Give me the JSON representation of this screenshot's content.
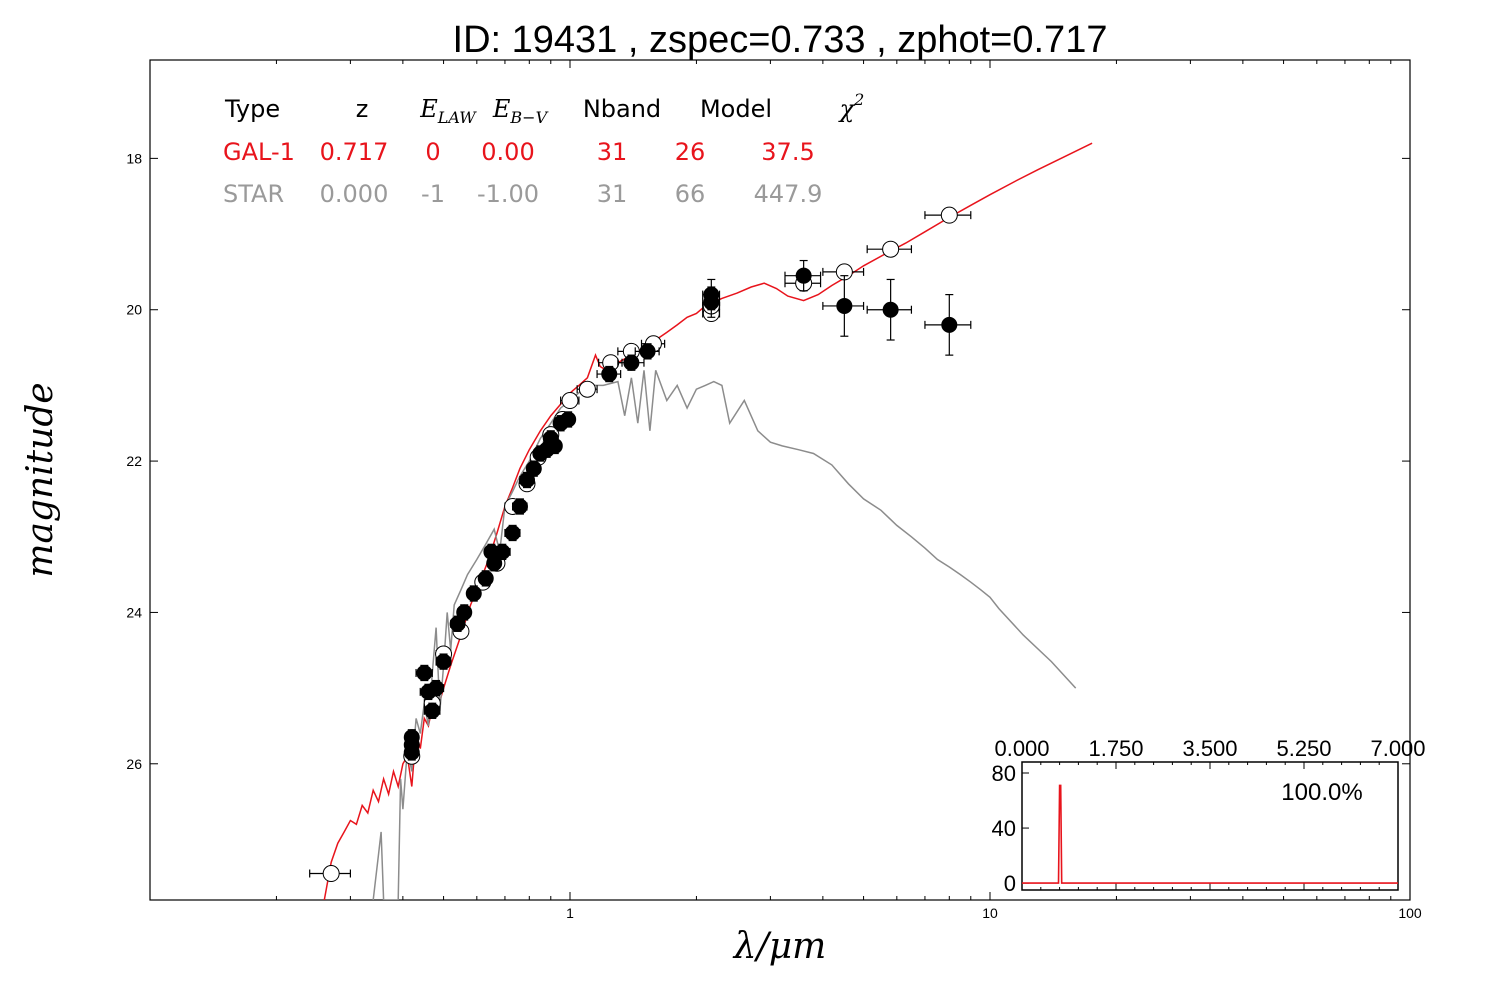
{
  "chart_data": {
    "type": "scatter",
    "title": "ID:  19431 , zspec=0.733 , zphot=0.717",
    "xlabel": "λ/μm",
    "ylabel": "magnitude",
    "xscale": "log",
    "xlim": [
      0.1,
      100
    ],
    "ylim": [
      27.8,
      16.7
    ],
    "yinverted": true,
    "x_ticks": [
      {
        "value": 1,
        "label": "1"
      },
      {
        "value": 10,
        "label": "10"
      },
      {
        "value": 100,
        "label": "100"
      }
    ],
    "y_ticks": [
      {
        "value": 18,
        "label": "18"
      },
      {
        "value": 20,
        "label": "20"
      },
      {
        "value": 22,
        "label": "22"
      },
      {
        "value": 24,
        "label": "24"
      },
      {
        "value": 26,
        "label": "26"
      }
    ],
    "fit_table": {
      "headers": [
        {
          "text": "Type",
          "math": false
        },
        {
          "text": "z",
          "math": false
        },
        {
          "text": "E",
          "sub": "LAW",
          "math": true
        },
        {
          "text": "E",
          "sub": "B−V",
          "math": true
        },
        {
          "text": "Nband",
          "math": false
        },
        {
          "text": "Model",
          "math": false
        },
        {
          "text": "χ",
          "sup": "2",
          "math": true
        }
      ],
      "rows": [
        {
          "color": "#e8141c",
          "cells": [
            "GAL-1",
            "0.717",
            "0",
            "0.00",
            "31",
            "26",
            "37.5"
          ]
        },
        {
          "color": "#9a9a9a",
          "cells": [
            "STAR",
            "0.000",
            "-1",
            "-1.00",
            "31",
            "66",
            "447.9"
          ]
        }
      ]
    },
    "series": [
      {
        "kind": "galaxy_template",
        "color": "#e8141c",
        "points": [
          [
            0.26,
            27.8
          ],
          [
            0.27,
            27.3
          ],
          [
            0.28,
            27.05
          ],
          [
            0.29,
            26.9
          ],
          [
            0.3,
            26.75
          ],
          [
            0.31,
            26.8
          ],
          [
            0.32,
            26.55
          ],
          [
            0.33,
            26.65
          ],
          [
            0.34,
            26.35
          ],
          [
            0.35,
            26.5
          ],
          [
            0.36,
            26.2
          ],
          [
            0.37,
            26.4
          ],
          [
            0.38,
            26.1
          ],
          [
            0.39,
            26.3
          ],
          [
            0.4,
            26.0
          ],
          [
            0.41,
            25.9
          ],
          [
            0.42,
            26.3
          ],
          [
            0.43,
            25.6
          ],
          [
            0.44,
            25.8
          ],
          [
            0.45,
            25.4
          ],
          [
            0.46,
            25.5
          ],
          [
            0.47,
            25.25
          ],
          [
            0.48,
            25.35
          ],
          [
            0.5,
            25.0
          ],
          [
            0.52,
            24.7
          ],
          [
            0.55,
            24.3
          ],
          [
            0.58,
            23.9
          ],
          [
            0.61,
            23.6
          ],
          [
            0.64,
            23.3
          ],
          [
            0.67,
            22.95
          ],
          [
            0.7,
            22.6
          ],
          [
            0.73,
            22.35
          ],
          [
            0.76,
            22.1
          ],
          [
            0.8,
            21.85
          ],
          [
            0.85,
            21.6
          ],
          [
            0.9,
            21.4
          ],
          [
            0.95,
            21.25
          ],
          [
            1.0,
            21.1
          ],
          [
            1.05,
            21.0
          ],
          [
            1.1,
            20.9
          ],
          [
            1.15,
            20.6
          ],
          [
            1.18,
            20.75
          ],
          [
            1.22,
            20.8
          ],
          [
            1.3,
            20.7
          ],
          [
            1.4,
            20.6
          ],
          [
            1.5,
            20.5
          ],
          [
            1.6,
            20.4
          ],
          [
            1.7,
            20.3
          ],
          [
            1.8,
            20.2
          ],
          [
            1.9,
            20.1
          ],
          [
            2.0,
            20.05
          ],
          [
            2.1,
            19.95
          ],
          [
            2.3,
            19.85
          ],
          [
            2.5,
            19.78
          ],
          [
            2.7,
            19.7
          ],
          [
            2.9,
            19.65
          ],
          [
            3.1,
            19.72
          ],
          [
            3.3,
            19.82
          ],
          [
            3.6,
            19.88
          ],
          [
            3.9,
            19.8
          ],
          [
            4.2,
            19.68
          ],
          [
            4.6,
            19.55
          ],
          [
            5.0,
            19.42
          ],
          [
            5.6,
            19.27
          ],
          [
            6.3,
            19.12
          ],
          [
            7.0,
            18.97
          ],
          [
            8.0,
            18.78
          ],
          [
            9.0,
            18.62
          ],
          [
            10.0,
            18.48
          ],
          [
            11.5,
            18.3
          ],
          [
            13.0,
            18.15
          ],
          [
            15.0,
            17.98
          ],
          [
            17.5,
            17.8
          ]
        ]
      },
      {
        "kind": "star_template",
        "color": "#8c8c8c",
        "points": [
          [
            0.34,
            27.8
          ],
          [
            0.35,
            27.2
          ],
          [
            0.355,
            26.9
          ],
          [
            0.36,
            27.8
          ],
          [
            0.39,
            27.8
          ],
          [
            0.395,
            26.2
          ],
          [
            0.4,
            26.6
          ],
          [
            0.41,
            25.8
          ],
          [
            0.42,
            26.1
          ],
          [
            0.43,
            25.4
          ],
          [
            0.44,
            25.6
          ],
          [
            0.45,
            25.2
          ],
          [
            0.46,
            25.5
          ],
          [
            0.47,
            24.8
          ],
          [
            0.48,
            24.2
          ],
          [
            0.49,
            25.3
          ],
          [
            0.5,
            24.7
          ],
          [
            0.51,
            24.0
          ],
          [
            0.52,
            24.5
          ],
          [
            0.53,
            23.9
          ],
          [
            0.55,
            23.7
          ],
          [
            0.57,
            23.5
          ],
          [
            0.6,
            23.3
          ],
          [
            0.63,
            23.1
          ],
          [
            0.66,
            22.9
          ],
          [
            0.68,
            23.2
          ],
          [
            0.7,
            22.6
          ],
          [
            0.73,
            22.4
          ],
          [
            0.76,
            22.2
          ],
          [
            0.8,
            22.0
          ],
          [
            0.85,
            21.7
          ],
          [
            0.9,
            21.5
          ],
          [
            0.95,
            21.3
          ],
          [
            1.0,
            21.2
          ],
          [
            1.1,
            21.0
          ],
          [
            1.2,
            21.0
          ],
          [
            1.3,
            20.95
          ],
          [
            1.35,
            21.4
          ],
          [
            1.4,
            20.9
          ],
          [
            1.45,
            21.5
          ],
          [
            1.5,
            20.8
          ],
          [
            1.55,
            21.6
          ],
          [
            1.6,
            20.8
          ],
          [
            1.7,
            21.2
          ],
          [
            1.8,
            21.0
          ],
          [
            1.9,
            21.3
          ],
          [
            2.0,
            21.05
          ],
          [
            2.1,
            21.0
          ],
          [
            2.2,
            20.95
          ],
          [
            2.3,
            21.0
          ],
          [
            2.4,
            21.5
          ],
          [
            2.6,
            21.2
          ],
          [
            2.8,
            21.6
          ],
          [
            3.0,
            21.75
          ],
          [
            3.2,
            21.8
          ],
          [
            3.5,
            21.85
          ],
          [
            3.8,
            21.9
          ],
          [
            4.2,
            22.05
          ],
          [
            4.6,
            22.3
          ],
          [
            5.0,
            22.5
          ],
          [
            5.5,
            22.65
          ],
          [
            6.0,
            22.85
          ],
          [
            6.5,
            23.0
          ],
          [
            7.0,
            23.15
          ],
          [
            7.5,
            23.3
          ],
          [
            8.0,
            23.4
          ],
          [
            8.5,
            23.5
          ],
          [
            9.0,
            23.6
          ],
          [
            9.5,
            23.7
          ],
          [
            10.0,
            23.8
          ],
          [
            10.5,
            23.95
          ],
          [
            12.0,
            24.3
          ],
          [
            14.0,
            24.65
          ],
          [
            16.0,
            25.0
          ]
        ]
      },
      {
        "kind": "observed_used",
        "points": [
          [
            0.42,
            25.65,
            0.01,
            0.1
          ],
          [
            0.42,
            25.75,
            0.01,
            0.1
          ],
          [
            0.42,
            25.85,
            0.01,
            0.1
          ],
          [
            0.45,
            24.8,
            0.02,
            0.1
          ],
          [
            0.46,
            25.05,
            0.02,
            0.1
          ],
          [
            0.48,
            25.0,
            0.02,
            0.1
          ],
          [
            0.47,
            25.3,
            0.02,
            0.1
          ],
          [
            0.5,
            24.65,
            0.02,
            0.1
          ],
          [
            0.54,
            24.15,
            0.02,
            0.1
          ],
          [
            0.56,
            24.0,
            0.02,
            0.1
          ],
          [
            0.59,
            23.75,
            0.02,
            0.1
          ],
          [
            0.63,
            23.55,
            0.02,
            0.1
          ],
          [
            0.65,
            23.2,
            0.02,
            0.1
          ],
          [
            0.66,
            23.35,
            0.02,
            0.1
          ],
          [
            0.69,
            23.2,
            0.03,
            0.1
          ],
          [
            0.73,
            22.95,
            0.03,
            0.1
          ],
          [
            0.76,
            22.6,
            0.03,
            0.1
          ],
          [
            0.79,
            22.25,
            0.03,
            0.1
          ],
          [
            0.82,
            22.1,
            0.03,
            0.1
          ],
          [
            0.85,
            21.9,
            0.03,
            0.1
          ],
          [
            0.88,
            21.85,
            0.03,
            0.1
          ],
          [
            0.9,
            21.7,
            0.03,
            0.1
          ],
          [
            0.92,
            21.8,
            0.03,
            0.1
          ],
          [
            0.95,
            21.5,
            0.03,
            0.1
          ],
          [
            0.99,
            21.45,
            0.03,
            0.1
          ],
          [
            1.24,
            20.85,
            0.08,
            0.1
          ],
          [
            1.4,
            20.7,
            0.1,
            0.1
          ],
          [
            1.53,
            20.55,
            0.1,
            0.1
          ],
          [
            2.17,
            19.8,
            0.1,
            0.2
          ],
          [
            2.17,
            19.9,
            0.1,
            0.2
          ],
          [
            3.6,
            19.55,
            0.35,
            0.2
          ],
          [
            4.5,
            19.95,
            0.5,
            0.4
          ],
          [
            5.8,
            20.0,
            0.7,
            0.4
          ],
          [
            8.0,
            20.2,
            1.0,
            0.4
          ]
        ]
      },
      {
        "kind": "model_mag",
        "points": [
          [
            0.27,
            27.45,
            0.03,
            0
          ],
          [
            0.42,
            25.9,
            0.01,
            0
          ],
          [
            0.47,
            25.2,
            0.02,
            0
          ],
          [
            0.5,
            24.55,
            0.02,
            0
          ],
          [
            0.55,
            24.25,
            0.02,
            0
          ],
          [
            0.62,
            23.6,
            0.02,
            0
          ],
          [
            0.67,
            23.35,
            0.02,
            0
          ],
          [
            0.73,
            22.6,
            0.03,
            0
          ],
          [
            0.79,
            22.3,
            0.03,
            0
          ],
          [
            0.84,
            21.95,
            0.03,
            0
          ],
          [
            0.9,
            21.65,
            0.03,
            0
          ],
          [
            0.96,
            21.45,
            0.03,
            0
          ],
          [
            1.0,
            21.2,
            0.05,
            0
          ],
          [
            1.1,
            21.05,
            0.06,
            0
          ],
          [
            1.25,
            20.7,
            0.08,
            0
          ],
          [
            1.4,
            20.55,
            0.1,
            0
          ],
          [
            1.58,
            20.45,
            0.1,
            0
          ],
          [
            2.17,
            20.05,
            0.1,
            0
          ],
          [
            2.17,
            19.95,
            0.1,
            0
          ],
          [
            3.6,
            19.65,
            0.35,
            0
          ],
          [
            4.5,
            19.5,
            0.5,
            0
          ],
          [
            5.8,
            19.2,
            0.7,
            0
          ],
          [
            8.0,
            18.75,
            1.0,
            0
          ]
        ]
      }
    ],
    "inset": {
      "xlim": [
        0,
        7
      ],
      "ylim": [
        -5,
        88
      ],
      "x_ticks": [
        {
          "value": 0.0,
          "label": "0.000"
        },
        {
          "value": 1.75,
          "label": "1.750"
        },
        {
          "value": 3.5,
          "label": "3.500"
        },
        {
          "value": 5.25,
          "label": "5.250"
        },
        {
          "value": 7.0,
          "label": "7.000"
        }
      ],
      "y_ticks": [
        {
          "value": 0,
          "label": "0"
        },
        {
          "value": 40,
          "label": "40"
        },
        {
          "value": 80,
          "label": "80"
        }
      ],
      "annotation": "100.0%",
      "color": "#e8141c",
      "pdf": [
        [
          0.0,
          0
        ],
        [
          0.6,
          0
        ],
        [
          0.68,
          0
        ],
        [
          0.7,
          71
        ],
        [
          0.72,
          71
        ],
        [
          0.74,
          0
        ],
        [
          0.8,
          0
        ],
        [
          7.0,
          0
        ]
      ]
    }
  }
}
